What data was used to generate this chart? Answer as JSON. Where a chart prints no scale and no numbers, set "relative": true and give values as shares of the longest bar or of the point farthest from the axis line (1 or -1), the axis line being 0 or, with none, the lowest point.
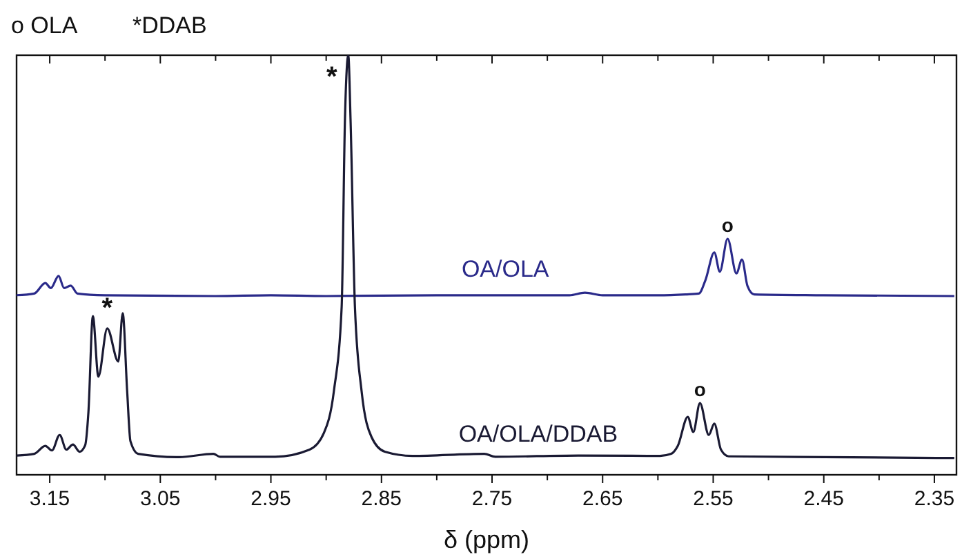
{
  "chart_data": {
    "type": "line",
    "relative": true,
    "xlabel": "δ (ppm)",
    "xlim": [
      3.18,
      2.33
    ],
    "xticks": [
      3.15,
      {
        "value": 3.1,
        "label": null
      },
      3.05,
      {
        "value": 3.0,
        "label": null
      },
      2.95,
      {
        "value": 2.9,
        "label": null
      },
      2.85,
      {
        "value": 2.8,
        "label": null
      },
      2.75,
      {
        "value": 2.7,
        "label": null
      },
      2.65,
      {
        "value": 2.6,
        "label": null
      },
      2.55,
      {
        "value": 2.5,
        "label": null
      },
      2.45,
      {
        "value": 2.4,
        "label": null
      },
      2.35
    ],
    "grid": false,
    "marker": "none",
    "line_style": "solid",
    "annotations": [
      "o OLA",
      "*DDAB",
      {
        "text": "*",
        "x": 2.88,
        "y": 1
      },
      {
        "text": "*",
        "x": 3.098,
        "y": 0.36
      },
      {
        "text": "o",
        "x": 2.537,
        "y": 0.5625
      },
      {
        "text": "o",
        "x": 2.562,
        "y": 0.171
      }
    ],
    "series": [
      {
        "name": "OA/OLA",
        "color": "#2a2a8a",
        "x": [
          3.18,
          3.164,
          3.154,
          3.149,
          3.142,
          3.137,
          3.131,
          3.125,
          3.1,
          3.0,
          2.95,
          2.9,
          2.8,
          2.68,
          2.666,
          2.65,
          2.6,
          2.575,
          2.563,
          2.557,
          2.549,
          2.544,
          2.537,
          2.529,
          2.524,
          2.519,
          2.513,
          2.45,
          2.332
        ],
        "values": [
          0.428,
          0.432,
          0.457,
          0.445,
          0.474,
          0.445,
          0.451,
          0.432,
          0.428,
          0.426,
          0.428,
          0.426,
          0.428,
          0.428,
          0.434,
          0.428,
          0.428,
          0.43,
          0.432,
          0.464,
          0.53,
          0.484,
          0.5625,
          0.48,
          0.513,
          0.45,
          0.43,
          0.428,
          0.426
        ]
      },
      {
        "name": "OA/OLA/DDAB",
        "color": "#1a1a33",
        "x": [
          3.18,
          3.164,
          3.154,
          3.148,
          3.141,
          3.135,
          3.129,
          3.123,
          3.118,
          3.115,
          3.111,
          3.106,
          3.098,
          3.088,
          3.084,
          3.08,
          3.077,
          3.07,
          3.033,
          3.002,
          2.996,
          2.946,
          2.915,
          2.902,
          2.893,
          2.886,
          2.883,
          2.88,
          2.878,
          2.874,
          2.868,
          2.859,
          2.847,
          2.822,
          2.757,
          2.747,
          2.672,
          2.598,
          2.588,
          2.582,
          2.573,
          2.568,
          2.562,
          2.554,
          2.549,
          2.543,
          2.536,
          2.449,
          2.332
        ],
        "values": [
          0.046,
          0.05,
          0.069,
          0.058,
          0.095,
          0.06,
          0.072,
          0.055,
          0.07,
          0.15,
          0.378,
          0.234,
          0.349,
          0.27,
          0.385,
          0.2,
          0.08,
          0.05,
          0.042,
          0.05,
          0.043,
          0.043,
          0.06,
          0.1,
          0.2,
          0.4,
          0.85,
          1,
          0.85,
          0.4,
          0.2,
          0.09,
          0.055,
          0.045,
          0.05,
          0.043,
          0.046,
          0.045,
          0.05,
          0.069,
          0.138,
          0.102,
          0.171,
          0.095,
          0.122,
          0.06,
          0.044,
          0.042,
          0.04
        ]
      }
    ]
  }
}
